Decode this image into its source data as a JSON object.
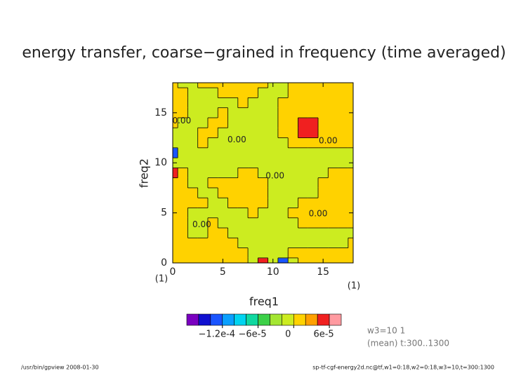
{
  "chart_data": {
    "type": "contour",
    "title": "energy transfer, coarse−grained in frequency (time averaged)",
    "xlabel": "freq1",
    "ylabel": "freq2",
    "xunit": "(1)",
    "yunit": "(1)",
    "x": [
      0,
      1,
      2,
      3,
      4,
      5,
      6,
      7,
      8,
      9,
      10,
      11,
      12,
      13,
      14,
      15,
      16,
      17,
      18
    ],
    "y": [
      0,
      1,
      2,
      3,
      4,
      5,
      6,
      7,
      8,
      9,
      10,
      11,
      12,
      13,
      14,
      15,
      16,
      17,
      18
    ],
    "xlim": [
      0,
      18
    ],
    "ylim": [
      0,
      18
    ],
    "xticks": [
      0,
      5,
      10,
      15
    ],
    "yticks": [
      0,
      5,
      10,
      15
    ],
    "z": [
      [
        1e-05,
        1e-05,
        1e-05,
        1e-05,
        1e-05,
        1e-05,
        1e-05,
        1e-05,
        -1e-05,
        5e-05,
        -1e-05,
        -0.00013,
        -1e-05,
        1e-05,
        1e-05,
        1e-05,
        1e-05,
        1e-05,
        1e-05
      ],
      [
        1e-05,
        1e-05,
        1e-05,
        1e-05,
        1e-05,
        1e-05,
        1e-05,
        1e-05,
        -1e-05,
        -1e-05,
        -1e-05,
        -1e-05,
        1e-05,
        1e-05,
        1e-05,
        1e-05,
        1e-05,
        1e-05,
        1e-05
      ],
      [
        1e-05,
        1e-05,
        1e-05,
        1e-05,
        1e-05,
        1e-05,
        1e-05,
        -1e-05,
        -1e-05,
        -1e-05,
        -1e-05,
        -1e-05,
        -1e-05,
        -1e-05,
        -1e-05,
        -1e-05,
        -1e-05,
        -1e-05,
        1e-05
      ],
      [
        1e-05,
        1e-05,
        -1e-05,
        -1e-05,
        1e-05,
        1e-05,
        -1e-05,
        -1e-05,
        -1e-05,
        -1e-05,
        -1e-05,
        -1e-05,
        -1e-05,
        -1e-05,
        -1e-05,
        -1e-05,
        -1e-05,
        -1e-05,
        -1e-05
      ],
      [
        1e-05,
        1e-05,
        -1e-05,
        -1e-05,
        1e-05,
        -1e-05,
        -1e-05,
        -1e-05,
        -1e-05,
        -1e-05,
        -1e-05,
        -1e-05,
        -1e-05,
        1e-05,
        1e-05,
        1e-05,
        1e-05,
        1e-05,
        1e-05
      ],
      [
        1e-05,
        1e-05,
        -1e-05,
        -1e-05,
        -1e-05,
        -1e-05,
        -1e-05,
        -1e-05,
        1e-05,
        -1e-05,
        -1e-05,
        -1e-05,
        1e-05,
        1e-05,
        1e-05,
        1e-05,
        1e-05,
        1e-05,
        1e-05
      ],
      [
        1e-05,
        1e-05,
        1e-05,
        1e-05,
        -1e-05,
        -1e-05,
        1e-05,
        1e-05,
        1e-05,
        1e-05,
        -1e-05,
        -1e-05,
        -1e-05,
        1e-05,
        1e-05,
        1e-05,
        1e-05,
        1e-05,
        1e-05
      ],
      [
        1e-05,
        1e-05,
        1e-05,
        -1e-05,
        -1e-05,
        1e-05,
        1e-05,
        1e-05,
        1e-05,
        1e-05,
        -1e-05,
        -1e-05,
        -1e-05,
        -1e-05,
        -1e-05,
        1e-05,
        1e-05,
        1e-05,
        1e-05
      ],
      [
        1e-05,
        1e-05,
        -1e-05,
        -1e-05,
        1e-05,
        1e-05,
        1e-05,
        1e-05,
        1e-05,
        1e-05,
        -1e-05,
        -1e-05,
        -1e-05,
        -1e-05,
        -1e-05,
        1e-05,
        1e-05,
        1e-05,
        1e-05
      ],
      [
        5e-05,
        1e-05,
        -1e-05,
        -1e-05,
        -1e-05,
        -1e-05,
        -1e-05,
        1e-05,
        1e-05,
        -1e-05,
        -1e-05,
        -1e-05,
        -1e-05,
        -1e-05,
        -1e-05,
        -1e-05,
        1e-05,
        1e-05,
        1e-05
      ],
      [
        -1e-05,
        -1e-05,
        -1e-05,
        -1e-05,
        -1e-05,
        -1e-05,
        -1e-05,
        -1e-05,
        -1e-05,
        -1e-05,
        -1e-05,
        -1e-05,
        -1e-05,
        -1e-05,
        -1e-05,
        -1e-05,
        -1e-05,
        -1e-05,
        -1e-05
      ],
      [
        -0.00013,
        -1e-05,
        -1e-05,
        -1e-05,
        -1e-05,
        -1e-05,
        -1e-05,
        -1e-05,
        -1e-05,
        -1e-05,
        -1e-05,
        -1e-05,
        -1e-05,
        -1e-05,
        -1e-05,
        -1e-05,
        -1e-05,
        -1e-05,
        -1e-05
      ],
      [
        -1e-05,
        -1e-05,
        -1e-05,
        1e-05,
        -1e-05,
        -1e-05,
        -1e-05,
        -1e-05,
        -1e-05,
        -1e-05,
        -1e-05,
        -1e-05,
        1e-05,
        1e-05,
        1e-05,
        1e-05,
        1e-05,
        1e-05,
        1e-05
      ],
      [
        -1e-05,
        -1e-05,
        -1e-05,
        1e-05,
        1e-05,
        -1e-05,
        -1e-05,
        -1e-05,
        -1e-05,
        -1e-05,
        -1e-05,
        1e-05,
        1e-05,
        5e-05,
        5e-05,
        1e-05,
        1e-05,
        1e-05,
        1e-05
      ],
      [
        1e-05,
        -1e-05,
        -1e-05,
        -1e-05,
        1e-05,
        1e-05,
        -1e-05,
        -1e-05,
        -1e-05,
        -1e-05,
        -1e-05,
        1e-05,
        1e-05,
        5e-05,
        5e-05,
        1e-05,
        1e-05,
        1e-05,
        1e-05
      ],
      [
        1e-05,
        1e-05,
        -1e-05,
        -1e-05,
        -1e-05,
        1e-05,
        -1e-05,
        -1e-05,
        -1e-05,
        -1e-05,
        -1e-05,
        1e-05,
        1e-05,
        1e-05,
        1e-05,
        1e-05,
        1e-05,
        1e-05,
        1e-05
      ],
      [
        1e-05,
        1e-05,
        -1e-05,
        -1e-05,
        -1e-05,
        -1e-05,
        -1e-05,
        1e-05,
        -1e-05,
        -1e-05,
        -1e-05,
        1e-05,
        1e-05,
        1e-05,
        1e-05,
        1e-05,
        1e-05,
        1e-05,
        1e-05
      ],
      [
        1e-05,
        1e-05,
        -1e-05,
        -1e-05,
        -1e-05,
        1e-05,
        1e-05,
        1e-05,
        1e-05,
        -1e-05,
        -1e-05,
        -1e-05,
        1e-05,
        1e-05,
        1e-05,
        1e-05,
        1e-05,
        1e-05,
        1e-05
      ],
      [
        1e-05,
        -1e-05,
        -1e-05,
        1e-05,
        1e-05,
        1e-05,
        1e-05,
        1e-05,
        1e-05,
        1e-05,
        -1e-05,
        -1e-05,
        1e-05,
        1e-05,
        1e-05,
        1e-05,
        1e-05,
        1e-05,
        1e-05
      ]
    ],
    "levels": [
      -0.00016,
      -0.00014,
      -0.00012,
      -0.0001,
      -8e-05,
      -6e-05,
      -4e-05,
      -2e-05,
      0,
      2e-05,
      4e-05,
      6e-05
    ],
    "colors": [
      "#7a00c0",
      "#1010d0",
      "#1a55ff",
      "#0aa0ff",
      "#00d4f0",
      "#10d8a0",
      "#3cd048",
      "#a4e632",
      "#ccec20",
      "#ffd200",
      "#ffa000",
      "#f02020",
      "#ff9aa0"
    ],
    "colorbar_ticks": [
      {
        "value": -0.00012,
        "label": "−1.2e-4"
      },
      {
        "value": -6e-05,
        "label": "−6e-5"
      },
      0,
      {
        "value": 6e-05,
        "label": "6e-5"
      }
    ],
    "contour_labels": [
      {
        "text": "0.00",
        "x": 0.9,
        "y": 14.2
      },
      {
        "text": "0.00",
        "x": 6.4,
        "y": 12.3
      },
      {
        "text": "0.00",
        "x": 15.5,
        "y": 12.2
      },
      {
        "text": "0.00",
        "x": 10.2,
        "y": 8.7
      },
      {
        "text": "0.00",
        "x": 14.5,
        "y": 4.9
      },
      {
        "text": "0.00",
        "x": 2.9,
        "y": 3.8
      }
    ],
    "info": [
      "w3=10 1",
      "(mean) t:300..1300"
    ],
    "footer_left": "/usr/bin/gpview  2008-01-30",
    "footer_right": "sp-tf-cgf-energy2d.nc@tf,w1=0:18,w2=0:18,w3=10,t=300:1300"
  }
}
